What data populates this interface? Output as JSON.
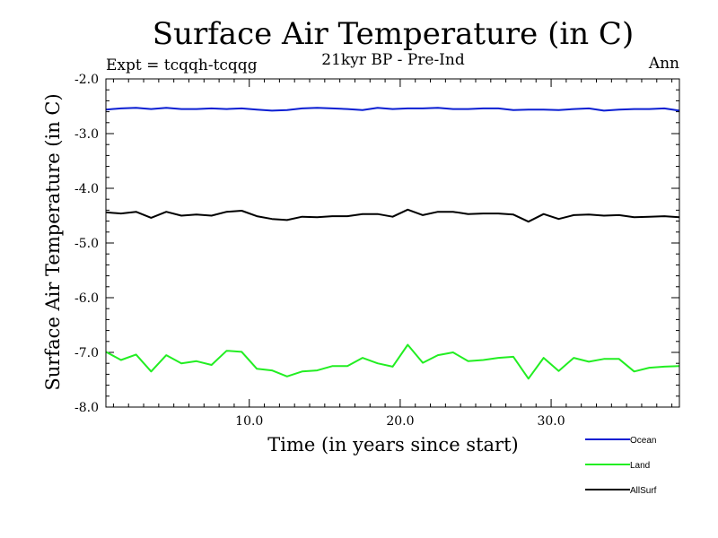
{
  "chart_data": {
    "type": "line",
    "title": "Surface Air Temperature (in C)",
    "subtitle": "21kyr BP - Pre-Ind",
    "experiment_label": "Expt = tcqqh-tcqqg",
    "period_label": "Ann",
    "xlabel": "Time (in years since start)",
    "ylabel": "Surface Air Temperature (in C)",
    "xlim": [
      0.5,
      38.5
    ],
    "ylim": [
      -8.0,
      -2.0
    ],
    "x_ticks": [
      10.0,
      20.0,
      30.0
    ],
    "x_tick_labels": [
      "10.0",
      "20.0",
      "30.0"
    ],
    "y_ticks": [
      -8.0,
      -7.0,
      -6.0,
      -5.0,
      -4.0,
      -3.0,
      -2.0
    ],
    "y_tick_labels": [
      "-8.0",
      "-7.0",
      "-6.0",
      "-5.0",
      "-4.0",
      "-3.0",
      "-2.0"
    ],
    "grid": false,
    "legend_position": "bottom-right",
    "x": [
      0.5,
      1.5,
      2.5,
      3.5,
      4.5,
      5.5,
      6.5,
      7.5,
      8.5,
      9.5,
      10.5,
      11.5,
      12.5,
      13.5,
      14.5,
      15.5,
      16.5,
      17.5,
      18.5,
      19.5,
      20.5,
      21.5,
      22.5,
      23.5,
      24.5,
      25.5,
      26.5,
      27.5,
      28.5,
      29.5,
      30.5,
      31.5,
      32.5,
      33.5,
      34.5,
      35.5,
      36.5,
      37.5,
      38.5
    ],
    "series": [
      {
        "name": "Ocean",
        "color": "#0a1ed2",
        "values": [
          -2.56,
          -2.54,
          -2.53,
          -2.55,
          -2.53,
          -2.55,
          -2.55,
          -2.54,
          -2.55,
          -2.54,
          -2.56,
          -2.58,
          -2.57,
          -2.54,
          -2.53,
          -2.54,
          -2.55,
          -2.57,
          -2.53,
          -2.55,
          -2.54,
          -2.54,
          -2.53,
          -2.55,
          -2.55,
          -2.54,
          -2.54,
          -2.57,
          -2.56,
          -2.56,
          -2.57,
          -2.55,
          -2.54,
          -2.58,
          -2.56,
          -2.55,
          -2.55,
          -2.54,
          -2.58
        ]
      },
      {
        "name": "Land",
        "color": "#22ee22",
        "values": [
          -6.99,
          -7.14,
          -7.04,
          -7.35,
          -7.05,
          -7.2,
          -7.16,
          -7.23,
          -6.97,
          -6.99,
          -7.3,
          -7.33,
          -7.44,
          -7.35,
          -7.33,
          -7.25,
          -7.25,
          -7.1,
          -7.2,
          -7.26,
          -6.86,
          -7.19,
          -7.05,
          -7.0,
          -7.16,
          -7.14,
          -7.1,
          -7.08,
          -7.48,
          -7.1,
          -7.34,
          -7.1,
          -7.17,
          -7.12,
          -7.12,
          -7.35,
          -7.28,
          -7.26,
          -7.25
        ]
      },
      {
        "name": "AllSurf",
        "color": "#000000",
        "values": [
          -4.44,
          -4.46,
          -4.43,
          -4.54,
          -4.43,
          -4.5,
          -4.48,
          -4.5,
          -4.43,
          -4.41,
          -4.51,
          -4.56,
          -4.58,
          -4.52,
          -4.53,
          -4.51,
          -4.51,
          -4.47,
          -4.47,
          -4.52,
          -4.39,
          -4.49,
          -4.43,
          -4.43,
          -4.47,
          -4.46,
          -4.46,
          -4.48,
          -4.61,
          -4.47,
          -4.56,
          -4.49,
          -4.48,
          -4.5,
          -4.49,
          -4.53,
          -4.52,
          -4.51,
          -4.53
        ]
      }
    ]
  }
}
